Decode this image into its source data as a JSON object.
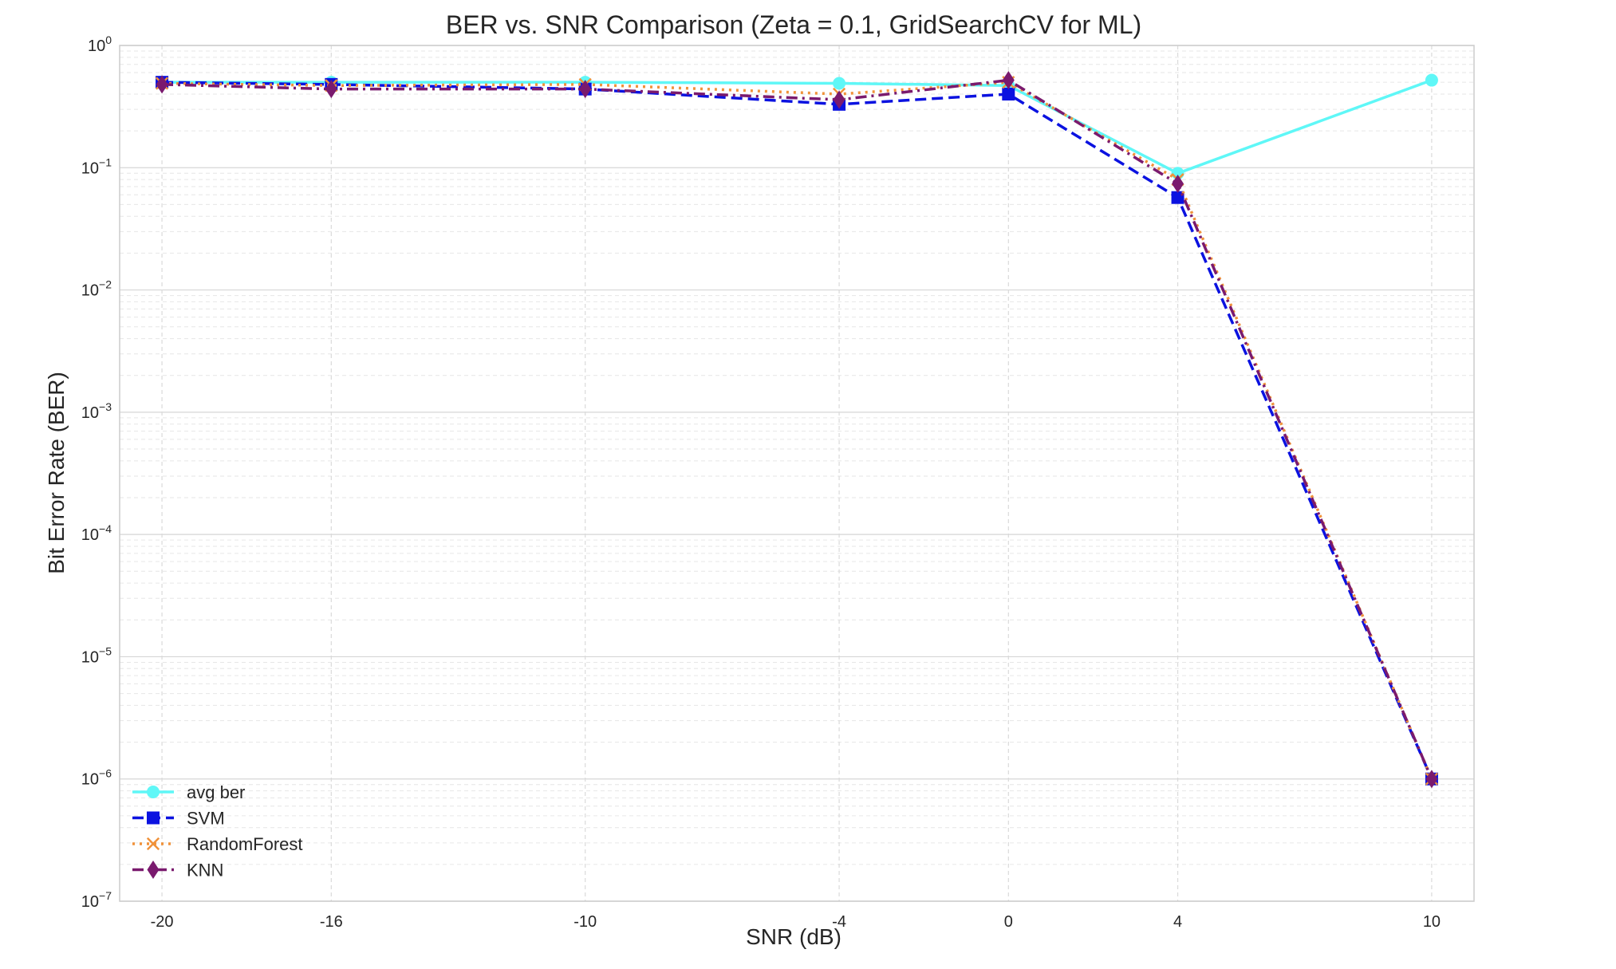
{
  "chart_data": {
    "type": "line",
    "title": "BER vs. SNR Comparison (Zeta = 0.1, GridSearchCV for ML)",
    "xlabel": "SNR (dB)",
    "ylabel": "Bit Error Rate (BER)",
    "x": [
      -20,
      -16,
      -10,
      -4,
      0,
      4,
      10
    ],
    "x_tick_labels": [
      "-20",
      "-16",
      "-10",
      "-4",
      "0",
      "4",
      "10"
    ],
    "xlim": [
      -21,
      11
    ],
    "y_scale": "log",
    "ylim": [
      1e-07,
      1
    ],
    "y_ticks": [
      {
        "base": "10",
        "exp": "0"
      },
      {
        "base": "10",
        "exp": "−1"
      },
      {
        "base": "10",
        "exp": "−2"
      },
      {
        "base": "10",
        "exp": "−3"
      },
      {
        "base": "10",
        "exp": "−4"
      },
      {
        "base": "10",
        "exp": "−5"
      },
      {
        "base": "10",
        "exp": "−6"
      },
      {
        "base": "10",
        "exp": "−7"
      }
    ],
    "grid": true,
    "legend_position": "bottom-left",
    "series": [
      {
        "name": "avg ber",
        "values": [
          0.5,
          0.5,
          0.5,
          0.49,
          0.47,
          0.09,
          0.52
        ],
        "color": "#5ff7f7",
        "dash": "solid",
        "marker": "circle"
      },
      {
        "name": "SVM",
        "values": [
          0.5,
          0.48,
          0.44,
          0.33,
          0.4,
          0.057,
          1e-06
        ],
        "color": "#0b12e0",
        "dash": "dashed",
        "marker": "square"
      },
      {
        "name": "RandomForest",
        "values": [
          0.49,
          0.47,
          0.48,
          0.4,
          0.5,
          0.08,
          1e-06
        ],
        "color": "#f0923a",
        "dash": "dotted",
        "marker": "x"
      },
      {
        "name": "KNN",
        "values": [
          0.48,
          0.44,
          0.44,
          0.36,
          0.52,
          0.074,
          1e-06
        ],
        "color": "#7a1a6e",
        "dash": "dashdot",
        "marker": "diamond"
      }
    ]
  }
}
